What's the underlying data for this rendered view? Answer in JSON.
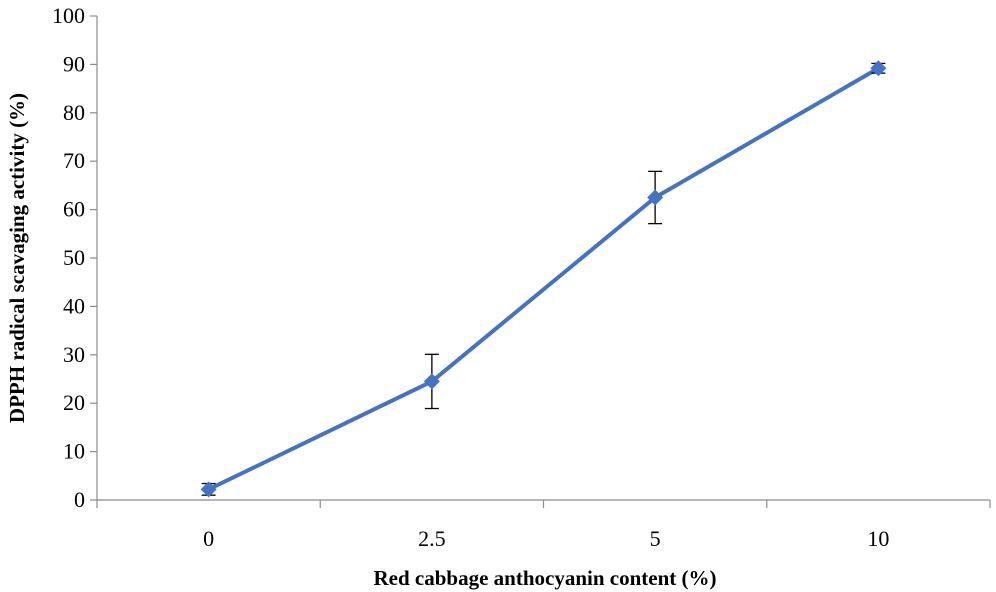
{
  "chart_data": {
    "type": "line",
    "categories": [
      "0",
      "2.5",
      "5",
      "10"
    ],
    "series": [
      {
        "values": [
          2.2,
          24.5,
          62.5,
          89.2
        ],
        "error": [
          1.2,
          5.6,
          5.4,
          1.0
        ],
        "color": "#4472c4"
      }
    ],
    "xlabel": "Red cabbage anthocyanin content (%)",
    "ylabel": "DPPH radical scavaging activity (%)",
    "ylim": [
      0,
      100
    ],
    "yticks": [
      "0",
      "10",
      "20",
      "30",
      "40",
      "50",
      "60",
      "70",
      "80",
      "90",
      "100"
    ],
    "grid": false,
    "legend": "none",
    "marker": "diamond"
  }
}
